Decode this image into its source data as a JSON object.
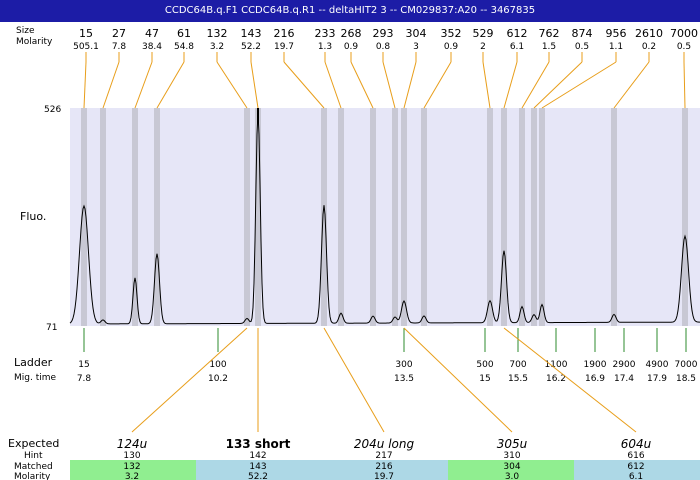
{
  "title": "CCDC64B.q.F1  CCDC64B.q.R1 -- deltaHIT2 3 -- CM029837:A20 -- 3467835",
  "header_labels": {
    "size": "Size",
    "molarity": "Molarity"
  },
  "axis_labels": {
    "fluo": "Fluo.",
    "y_top": "526",
    "y_bottom": "71"
  },
  "ladder_labels": {
    "ladder": "Ladder",
    "mig_time": "Mig. time"
  },
  "bottom_labels": {
    "expected": "Expected",
    "hint": "Hint",
    "matched": "Matched",
    "molarity": "Molarity"
  },
  "colors": {
    "title_bg": "#1c1ca6",
    "plot_bg": "#e6e6f7",
    "band": "#c8c8d4",
    "leader": "#e89e1a",
    "ladder_tick": "#2e8b2e",
    "green_cell": "#90ee90",
    "blue_cell": "#add8e6"
  },
  "chart_data": {
    "type": "line",
    "y_range": [
      71,
      526
    ],
    "peaks": [
      {
        "size": "15",
        "molarity": "505.1"
      },
      {
        "size": "27",
        "molarity": "7.8"
      },
      {
        "size": "47",
        "molarity": "38.4"
      },
      {
        "size": "61",
        "molarity": "54.8"
      },
      {
        "size": "132",
        "molarity": "3.2"
      },
      {
        "size": "143",
        "molarity": "52.2"
      },
      {
        "size": "216",
        "molarity": "19.7"
      },
      {
        "size": "233",
        "molarity": "1.3"
      },
      {
        "size": "268",
        "molarity": "0.9"
      },
      {
        "size": "293",
        "molarity": "0.8"
      },
      {
        "size": "304",
        "molarity": "3"
      },
      {
        "size": "352",
        "molarity": "0.9"
      },
      {
        "size": "529",
        "molarity": "2"
      },
      {
        "size": "612",
        "molarity": "6.1"
      },
      {
        "size": "762",
        "molarity": "1.5"
      },
      {
        "size": "874",
        "molarity": "0.5"
      },
      {
        "size": "956",
        "molarity": "1.1"
      },
      {
        "size": "2610",
        "molarity": "0.2"
      },
      {
        "size": "7000",
        "molarity": "0.5"
      }
    ],
    "ladder": [
      {
        "size": "15",
        "time": "7.8"
      },
      {
        "size": "100",
        "time": "10.2"
      },
      {
        "size": "300",
        "time": "13.5"
      },
      {
        "size": "500",
        "time": "15"
      },
      {
        "size": "700",
        "time": "15.5"
      },
      {
        "size": "1100",
        "time": "16.2"
      },
      {
        "size": "1900",
        "time": "16.9"
      },
      {
        "size": "2900",
        "time": "17.4"
      },
      {
        "size": "4900",
        "time": "17.9"
      },
      {
        "size": "7000",
        "time": "18.5"
      }
    ],
    "expected": [
      {
        "label": "124u",
        "hint": "130",
        "matched": "132",
        "molarity": "3.2"
      },
      {
        "label": "133 short",
        "hint": "142",
        "matched": "143",
        "molarity": "52.2"
      },
      {
        "label": "204u long",
        "hint": "217",
        "matched": "216",
        "molarity": "19.7"
      },
      {
        "label": "305u",
        "hint": "310",
        "matched": "304",
        "molarity": "3.0"
      },
      {
        "label": "604u",
        "hint": "616",
        "matched": "612",
        "molarity": "6.1"
      }
    ]
  }
}
